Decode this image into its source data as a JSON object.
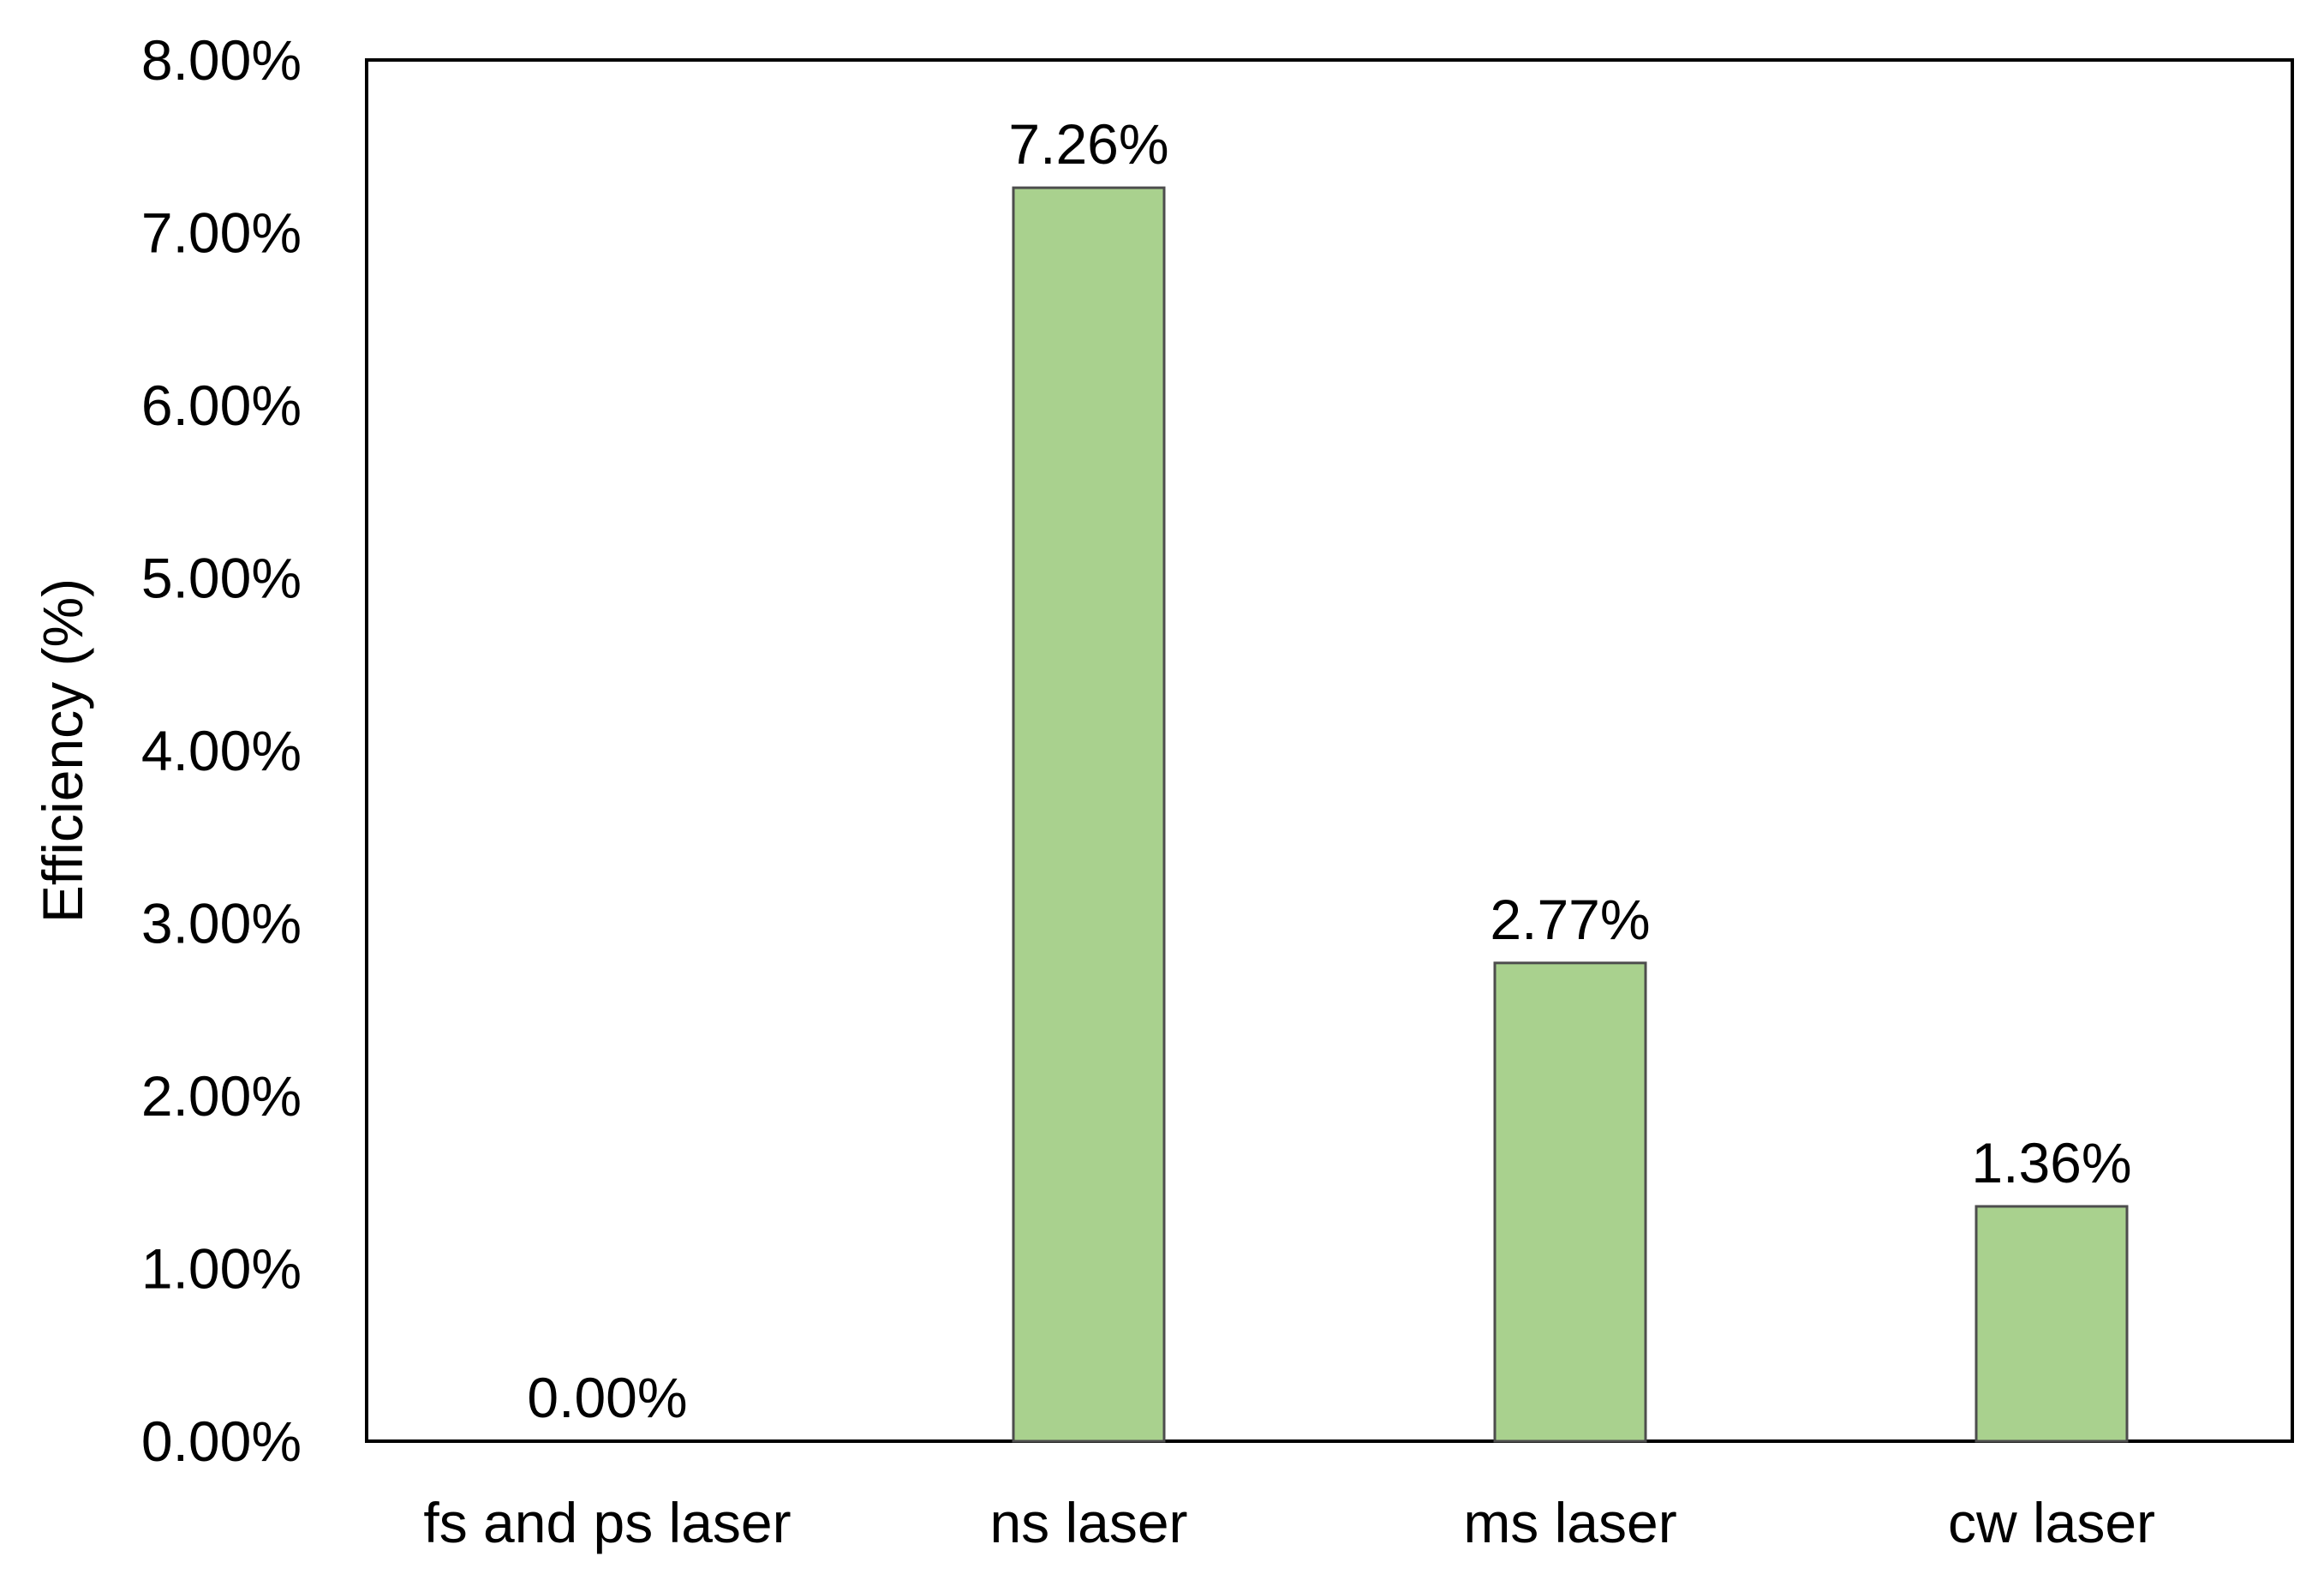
{
  "chart_data": {
    "type": "bar",
    "title": "",
    "xlabel": "",
    "ylabel": "Efficiency (%)",
    "categories": [
      "fs and ps laser",
      "ns laser",
      "ms laser",
      "cw laser"
    ],
    "values": [
      0.0,
      7.26,
      2.77,
      1.36
    ],
    "data_labels": [
      "0.00%",
      "7.26%",
      "2.77%",
      "1.36%"
    ],
    "ylim": [
      0,
      8
    ],
    "yticks": [
      0,
      1,
      2,
      3,
      4,
      5,
      6,
      7,
      8
    ],
    "ytick_labels": [
      "0.00%",
      "1.00%",
      "2.00%",
      "3.00%",
      "4.00%",
      "5.00%",
      "6.00%",
      "7.00%",
      "8.00%"
    ],
    "grid": false,
    "legend": "none",
    "bar_color": "#a9d18e",
    "bar_edge_color": "#4d4d4d"
  }
}
